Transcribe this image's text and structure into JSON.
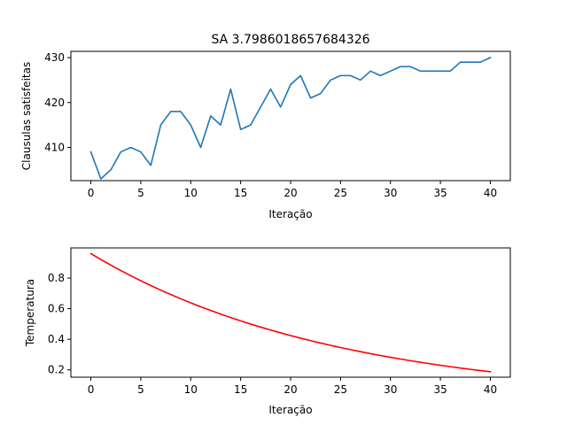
{
  "chart_data": [
    {
      "type": "line",
      "title": "SA 3.7986018657684326",
      "xlabel": "Iteração",
      "ylabel": "Clausulas satisfeitas",
      "xlim": [
        -2,
        42
      ],
      "ylim": [
        402.6,
        431.4
      ],
      "xticks": [
        0,
        5,
        10,
        15,
        20,
        25,
        30,
        35,
        40
      ],
      "yticks": [
        410,
        420,
        430
      ],
      "grid": false,
      "series": [
        {
          "color": "#1f77b4",
          "x": [
            0,
            1,
            2,
            3,
            4,
            5,
            6,
            7,
            8,
            9,
            10,
            11,
            12,
            13,
            14,
            15,
            16,
            17,
            18,
            19,
            20,
            21,
            22,
            23,
            24,
            25,
            26,
            27,
            28,
            29,
            30,
            31,
            32,
            33,
            34,
            35,
            36,
            37,
            38,
            39,
            40
          ],
          "values": [
            409,
            403,
            405,
            409,
            410,
            409,
            406,
            415,
            418,
            418,
            415,
            410,
            417,
            415,
            423,
            414,
            415,
            419,
            423,
            419,
            424,
            426,
            421,
            422,
            425,
            426,
            426,
            425,
            427,
            426,
            427,
            428,
            428,
            427,
            427,
            427,
            427,
            429,
            429,
            429,
            430
          ]
        }
      ]
    },
    {
      "type": "line",
      "title": "",
      "xlabel": "Iteração",
      "ylabel": "Temperatura",
      "xlim": [
        -2,
        42
      ],
      "ylim": [
        0.152,
        0.997
      ],
      "xticks": [
        0,
        5,
        10,
        15,
        20,
        25,
        30,
        35,
        40
      ],
      "yticks": [
        0.2,
        0.4,
        0.6,
        0.8
      ],
      "grid": false,
      "series": [
        {
          "color": "#ff0000",
          "x": [
            0,
            1,
            2,
            3,
            4,
            5,
            6,
            7,
            8,
            9,
            10,
            11,
            12,
            13,
            14,
            15,
            16,
            17,
            18,
            19,
            20,
            21,
            22,
            23,
            24,
            25,
            26,
            27,
            28,
            29,
            30,
            31,
            32,
            33,
            34,
            35,
            36,
            37,
            38,
            39,
            40
          ],
          "values": [
            0.9595,
            0.9212,
            0.8843,
            0.8489,
            0.815,
            0.7824,
            0.7511,
            0.721,
            0.6922,
            0.6645,
            0.6379,
            0.6124,
            0.5879,
            0.5644,
            0.5418,
            0.5201,
            0.4993,
            0.4794,
            0.4602,
            0.4418,
            0.4241,
            0.4071,
            0.3909,
            0.3752,
            0.3602,
            0.3458,
            0.332,
            0.3187,
            0.3059,
            0.2937,
            0.282,
            0.2707,
            0.2599,
            0.2495,
            0.2395,
            0.2299,
            0.2207,
            0.2119,
            0.2034,
            0.1953,
            0.1875
          ]
        }
      ]
    }
  ]
}
